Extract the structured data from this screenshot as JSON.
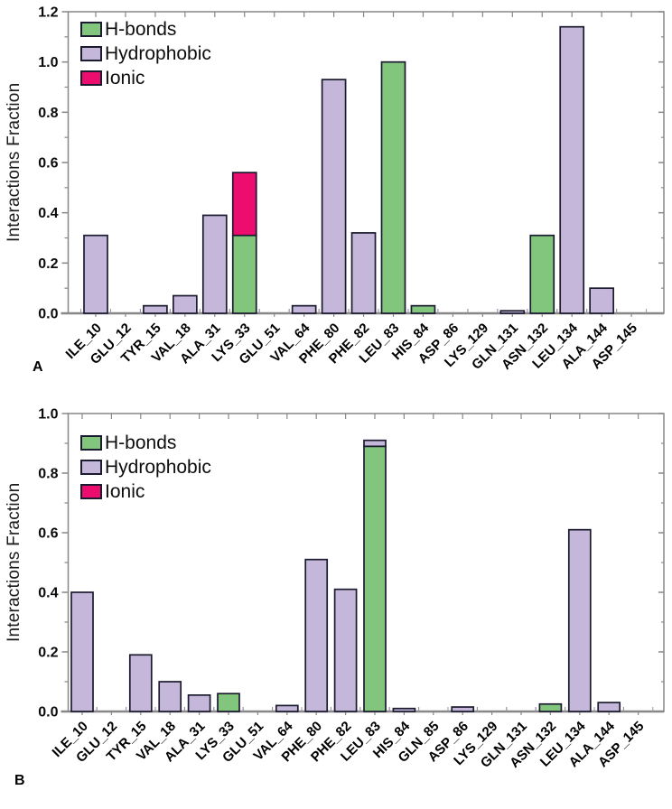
{
  "figure": {
    "background": "#ffffff"
  },
  "chart_data": [
    {
      "type": "bar",
      "stacked": true,
      "panel_label": "A",
      "title": "",
      "xlabel": "",
      "ylabel": "Interactions Fraction",
      "ylim": [
        0,
        1.2
      ],
      "yticks": [
        "0.0",
        "0.2",
        "0.4",
        "0.6",
        "0.8",
        "1.0",
        "1.2"
      ],
      "ytick_step": 0.2,
      "grid": false,
      "legend_position": "upper-left",
      "legend": [
        "H-bonds",
        "Hydrophobic",
        "Ionic"
      ],
      "colors": {
        "h_bonds": "#82c67d",
        "hydrophobic": "#c5b7d9",
        "ionic": "#ec0d6e",
        "bar_outline": "#1b1b2f",
        "axis": "#878787",
        "minor_tick": "#9a93a8",
        "text": "#0b0b0b"
      },
      "categories": [
        "ILE_10",
        "GLU_12",
        "TYR_15",
        "VAL_18",
        "ALA_31",
        "LYS_33",
        "GLU_51",
        "VAL_64",
        "PHE_80",
        "PHE_82",
        "LEU_83",
        "HIS_84",
        "ASP_86",
        "LYS_129",
        "GLN_131",
        "ASN_132",
        "LEU_134",
        "ALA_144",
        "ASP_145"
      ],
      "series": [
        {
          "name": "H-bonds",
          "values": [
            0,
            0,
            0,
            0,
            0,
            0.31,
            0,
            0,
            0,
            0,
            1.0,
            0.03,
            0,
            0,
            0,
            0.31,
            0,
            0,
            0
          ]
        },
        {
          "name": "Hydrophobic",
          "values": [
            0.31,
            0,
            0.03,
            0.07,
            0.39,
            0,
            0,
            0.03,
            0.93,
            0.32,
            0,
            0,
            0,
            0,
            0.01,
            0,
            1.14,
            0.1,
            0
          ]
        },
        {
          "name": "Ionic",
          "values": [
            0,
            0,
            0,
            0,
            0,
            0.25,
            0,
            0,
            0,
            0,
            0,
            0,
            0,
            0,
            0,
            0,
            0,
            0,
            0
          ]
        }
      ]
    },
    {
      "type": "bar",
      "stacked": true,
      "panel_label": "B",
      "title": "",
      "xlabel": "",
      "ylabel": "Interactions Fraction",
      "ylim": [
        0,
        1.0
      ],
      "yticks": [
        "0.0",
        "0.2",
        "0.4",
        "0.6",
        "0.8",
        "1.0"
      ],
      "ytick_step": 0.2,
      "grid": false,
      "legend_position": "upper-left",
      "legend": [
        "H-bonds",
        "Hydrophobic",
        "Ionic"
      ],
      "colors": {
        "h_bonds": "#82c67d",
        "hydrophobic": "#c5b7d9",
        "ionic": "#ec0d6e",
        "bar_outline": "#1b1b2f",
        "axis": "#878787",
        "minor_tick": "#9a93a8",
        "text": "#0b0b0b"
      },
      "categories": [
        "ILE_10",
        "GLU_12",
        "TYR_15",
        "VAL_18",
        "ALA_31",
        "LYS_33",
        "GLU_51",
        "VAL_64",
        "PHE_80",
        "PHE_82",
        "LEU_83",
        "HIS_84",
        "GLN_85",
        "ASP_86",
        "LYS_129",
        "GLN_131",
        "ASN_132",
        "LEU_134",
        "ALA_144",
        "ASP_145"
      ],
      "series": [
        {
          "name": "H-bonds",
          "values": [
            0,
            0,
            0,
            0,
            0,
            0.06,
            0,
            0,
            0,
            0,
            0.89,
            0,
            0,
            0,
            0,
            0,
            0.025,
            0,
            0,
            0
          ]
        },
        {
          "name": "Hydrophobic",
          "values": [
            0.4,
            0,
            0.19,
            0.1,
            0.055,
            0,
            0,
            0.02,
            0.51,
            0.41,
            0.02,
            0.01,
            0,
            0.015,
            0,
            0,
            0,
            0.61,
            0.03,
            0
          ]
        },
        {
          "name": "Ionic",
          "values": [
            0,
            0,
            0,
            0,
            0,
            0,
            0,
            0,
            0,
            0,
            0,
            0,
            0,
            0,
            0,
            0,
            0,
            0,
            0,
            0
          ]
        }
      ]
    }
  ]
}
